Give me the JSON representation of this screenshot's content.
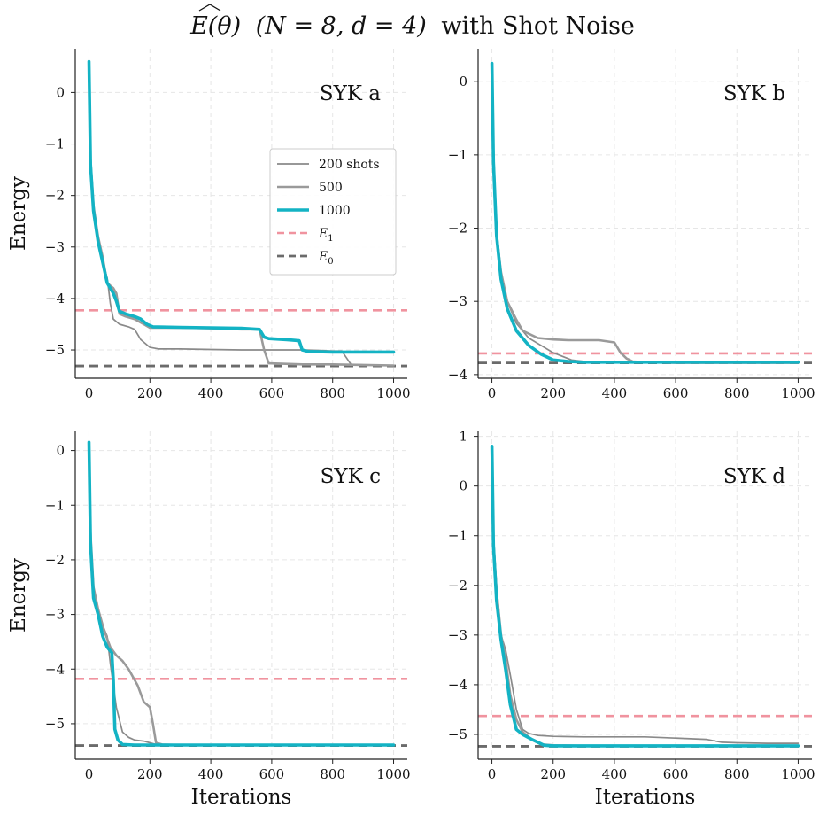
{
  "title": {
    "math": "E(θ)",
    "params": "(N = 8, d = 4)",
    "suffix": "with Shot Noise"
  },
  "legend": {
    "items": [
      {
        "label": "200 shots",
        "style": "thin-gray"
      },
      {
        "label": "500",
        "style": "mid-gray"
      },
      {
        "label": "1000",
        "style": "cyan"
      },
      {
        "label": "E",
        "sub": "1",
        "style": "pink-dash"
      },
      {
        "label": "E",
        "sub": "0",
        "style": "gray-dash"
      }
    ]
  },
  "colors": {
    "shots_200": "#8a8a8a",
    "shots_500": "#9a9a9a",
    "shots_1000": "#13b3c4",
    "e1": "#f0939f",
    "e0": "#6b6b6b",
    "grid": "#e6e6e6"
  },
  "chart_data": [
    {
      "type": "line",
      "panel_label": "SYK a",
      "xlabel": "",
      "ylabel": "Energy",
      "xlim": [
        -45,
        1045
      ],
      "ylim": [
        -5.55,
        0.85
      ],
      "xticks": [
        0,
        200,
        400,
        600,
        800,
        1000
      ],
      "yticks": [
        0,
        -1,
        -2,
        -3,
        -4,
        -5
      ],
      "show_legend": true,
      "grid": true,
      "hlines": {
        "E1": -4.23,
        "E0": -5.31
      },
      "series": [
        {
          "name": "200 shots",
          "x": [
            0,
            5,
            15,
            30,
            45,
            60,
            70,
            80,
            100,
            130,
            150,
            170,
            200,
            230,
            300,
            400,
            500,
            560,
            580,
            600,
            700,
            760,
            800,
            830,
            860,
            900,
            1000
          ],
          "y": [
            0.6,
            -1.3,
            -2.3,
            -2.9,
            -3.3,
            -3.6,
            -4.1,
            -4.4,
            -4.5,
            -4.55,
            -4.6,
            -4.8,
            -4.95,
            -4.98,
            -4.98,
            -4.99,
            -5.0,
            -5.0,
            -5.0,
            -5.0,
            -5.0,
            -5.01,
            -5.02,
            -5.02,
            -5.28,
            -5.29,
            -5.3
          ]
        },
        {
          "name": "500",
          "x": [
            0,
            5,
            15,
            30,
            45,
            60,
            80,
            90,
            100,
            120,
            150,
            180,
            200,
            300,
            400,
            500,
            560,
            575,
            590,
            700,
            800,
            900,
            1000
          ],
          "y": [
            0.6,
            -1.3,
            -2.2,
            -2.8,
            -3.2,
            -3.7,
            -3.8,
            -3.9,
            -4.3,
            -4.35,
            -4.4,
            -4.5,
            -4.57,
            -4.57,
            -4.58,
            -4.6,
            -4.6,
            -5.0,
            -5.26,
            -5.28,
            -5.28,
            -5.29,
            -5.3
          ]
        },
        {
          "name": "1000",
          "x": [
            0,
            5,
            15,
            30,
            45,
            60,
            80,
            90,
            100,
            120,
            150,
            170,
            190,
            210,
            300,
            400,
            500,
            560,
            575,
            590,
            650,
            690,
            700,
            720,
            800,
            900,
            1000
          ],
          "y": [
            0.6,
            -1.4,
            -2.3,
            -2.9,
            -3.3,
            -3.7,
            -3.9,
            -4.05,
            -4.25,
            -4.3,
            -4.35,
            -4.4,
            -4.5,
            -4.55,
            -4.56,
            -4.57,
            -4.58,
            -4.6,
            -4.75,
            -4.78,
            -4.8,
            -4.82,
            -5.0,
            -5.03,
            -5.04,
            -5.04,
            -5.04
          ]
        }
      ]
    },
    {
      "type": "line",
      "panel_label": "SYK b",
      "xlabel": "",
      "ylabel": "",
      "xlim": [
        -45,
        1045
      ],
      "ylim": [
        -4.05,
        0.45
      ],
      "xticks": [
        0,
        200,
        400,
        600,
        800,
        1000
      ],
      "yticks": [
        0,
        -1,
        -2,
        -3,
        -4
      ],
      "show_legend": false,
      "grid": true,
      "hlines": {
        "E1": -3.71,
        "E0": -3.84
      },
      "series": [
        {
          "name": "200 shots",
          "x": [
            0,
            5,
            15,
            30,
            50,
            80,
            120,
            160,
            200,
            260,
            300,
            360,
            400,
            460,
            500,
            600,
            700,
            800,
            1000
          ],
          "y": [
            0.25,
            -1.0,
            -2.0,
            -2.6,
            -3.0,
            -3.3,
            -3.5,
            -3.6,
            -3.7,
            -3.8,
            -3.82,
            -3.83,
            -3.83,
            -3.84,
            -3.84,
            -3.84,
            -3.84,
            -3.84,
            -3.84
          ]
        },
        {
          "name": "500",
          "x": [
            0,
            5,
            15,
            30,
            50,
            80,
            100,
            150,
            200,
            250,
            300,
            350,
            400,
            420,
            440,
            460,
            500,
            600,
            800,
            1000
          ],
          "y": [
            0.25,
            -1.0,
            -2.1,
            -2.6,
            -3.0,
            -3.25,
            -3.4,
            -3.5,
            -3.52,
            -3.53,
            -3.53,
            -3.53,
            -3.56,
            -3.7,
            -3.78,
            -3.82,
            -3.83,
            -3.84,
            -3.84,
            -3.84
          ]
        },
        {
          "name": "1000",
          "x": [
            0,
            5,
            15,
            30,
            50,
            80,
            120,
            160,
            200,
            250,
            300,
            400,
            600,
            800,
            1000
          ],
          "y": [
            0.25,
            -1.1,
            -2.1,
            -2.7,
            -3.1,
            -3.4,
            -3.6,
            -3.72,
            -3.8,
            -3.82,
            -3.83,
            -3.83,
            -3.83,
            -3.83,
            -3.83
          ]
        }
      ]
    },
    {
      "type": "line",
      "panel_label": "SYK c",
      "xlabel": "Iterations",
      "ylabel": "Energy",
      "xlim": [
        -45,
        1045
      ],
      "ylim": [
        -5.65,
        0.35
      ],
      "xticks": [
        0,
        200,
        400,
        600,
        800,
        1000
      ],
      "yticks": [
        0,
        -1,
        -2,
        -3,
        -4,
        -5
      ],
      "show_legend": false,
      "grid": true,
      "hlines": {
        "E1": -4.18,
        "E0": -5.4
      },
      "series": [
        {
          "name": "200 shots",
          "x": [
            0,
            5,
            15,
            30,
            45,
            60,
            70,
            80,
            90,
            110,
            130,
            150,
            180,
            200,
            220,
            300,
            500,
            800,
            1000
          ],
          "y": [
            0.15,
            -1.6,
            -2.6,
            -3.0,
            -3.2,
            -3.4,
            -3.9,
            -4.3,
            -4.7,
            -5.15,
            -5.25,
            -5.3,
            -5.32,
            -5.35,
            -5.38,
            -5.38,
            -5.39,
            -5.39,
            -5.39
          ]
        },
        {
          "name": "500",
          "x": [
            0,
            5,
            15,
            30,
            50,
            70,
            90,
            110,
            130,
            160,
            180,
            200,
            210,
            220,
            240,
            300,
            500,
            1000
          ],
          "y": [
            0.15,
            -1.5,
            -2.5,
            -2.9,
            -3.3,
            -3.6,
            -3.75,
            -3.85,
            -4.0,
            -4.3,
            -4.6,
            -4.7,
            -5.0,
            -5.35,
            -5.38,
            -5.39,
            -5.39,
            -5.39
          ]
        },
        {
          "name": "1000",
          "x": [
            0,
            5,
            15,
            30,
            45,
            60,
            75,
            80,
            85,
            95,
            110,
            150,
            200,
            400,
            600,
            800,
            1000
          ],
          "y": [
            0.15,
            -1.7,
            -2.7,
            -3.0,
            -3.4,
            -3.6,
            -3.7,
            -4.2,
            -5.1,
            -5.3,
            -5.38,
            -5.39,
            -5.39,
            -5.39,
            -5.39,
            -5.39,
            -5.39
          ]
        }
      ]
    },
    {
      "type": "line",
      "panel_label": "SYK d",
      "xlabel": "Iterations",
      "ylabel": "",
      "xlim": [
        -45,
        1045
      ],
      "ylim": [
        -5.5,
        1.1
      ],
      "xticks": [
        0,
        200,
        400,
        600,
        800,
        1000
      ],
      "yticks": [
        1,
        0,
        -1,
        -2,
        -3,
        -4,
        -5
      ],
      "show_legend": false,
      "grid": true,
      "hlines": {
        "E1": -4.63,
        "E0": -5.24
      },
      "series": [
        {
          "name": "200 shots",
          "x": [
            0,
            5,
            15,
            30,
            45,
            60,
            80,
            100,
            120,
            150,
            200,
            300,
            500,
            700,
            750,
            800,
            900,
            1000
          ],
          "y": [
            0.8,
            -1.0,
            -2.0,
            -3.0,
            -3.3,
            -3.8,
            -4.5,
            -4.9,
            -4.98,
            -5.02,
            -5.04,
            -5.05,
            -5.05,
            -5.1,
            -5.16,
            -5.17,
            -5.18,
            -5.18
          ]
        },
        {
          "name": "500",
          "x": [
            0,
            5,
            15,
            30,
            45,
            60,
            80,
            100,
            130,
            160,
            200,
            300,
            500,
            800,
            1000
          ],
          "y": [
            0.8,
            -1.1,
            -2.1,
            -3.0,
            -3.5,
            -4.2,
            -4.7,
            -4.95,
            -5.1,
            -5.2,
            -5.22,
            -5.23,
            -5.23,
            -5.23,
            -5.23
          ]
        },
        {
          "name": "1000",
          "x": [
            0,
            5,
            15,
            30,
            45,
            60,
            80,
            100,
            130,
            170,
            200,
            400,
            600,
            800,
            1000
          ],
          "y": [
            0.8,
            -1.2,
            -2.3,
            -3.1,
            -3.7,
            -4.4,
            -4.9,
            -5.0,
            -5.1,
            -5.22,
            -5.23,
            -5.23,
            -5.23,
            -5.23,
            -5.23
          ]
        }
      ]
    }
  ]
}
